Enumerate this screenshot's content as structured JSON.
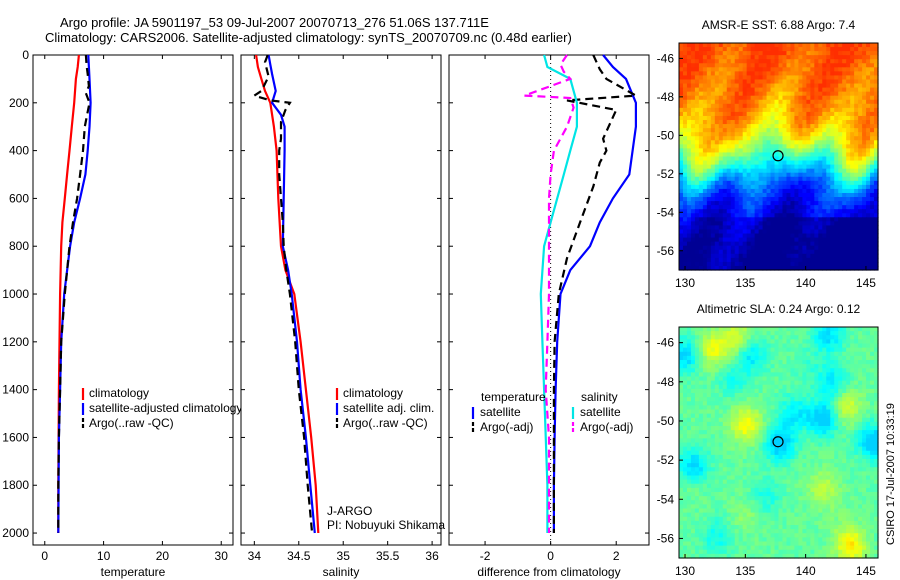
{
  "header": {
    "line1": "Argo profile: JA 5901197_53 09-Jul-2007 20070713_276 51.06S 137.711E",
    "line2": "Climatology: CARS2006. Satellite-adjusted climatology: synTS_20070709.nc (0.48d earlier)"
  },
  "colors": {
    "climatology": "#ff0000",
    "satellite": "#0000ff",
    "argo": "#000000",
    "sal_satellite": "#00e5e5",
    "sal_argo": "#ff00ff"
  },
  "chart_data": [
    {
      "type": "line",
      "id": "temperature",
      "xlabel": "temperature",
      "ylabel": "",
      "xlim": [
        -2,
        32
      ],
      "ylim": [
        0,
        2050
      ],
      "inverted_y": true,
      "xticks": [
        0,
        10,
        20,
        30
      ],
      "yticks": [
        0,
        200,
        400,
        600,
        800,
        1000,
        1200,
        1400,
        1600,
        1800,
        2000
      ],
      "legend": {
        "position": "lower-right",
        "entries": [
          "climatology",
          "satellite-adjusted climatology",
          "Argo(..raw -QC)"
        ]
      },
      "series": [
        {
          "name": "climatology",
          "color": "#ff0000",
          "style": "solid",
          "points": [
            [
              5.8,
              0
            ],
            [
              5.6,
              50
            ],
            [
              5.3,
              100
            ],
            [
              5.0,
              200
            ],
            [
              4.6,
              300
            ],
            [
              4.2,
              400
            ],
            [
              3.8,
              500
            ],
            [
              3.4,
              600
            ],
            [
              3.0,
              700
            ],
            [
              2.8,
              800
            ],
            [
              2.6,
              1000
            ],
            [
              2.5,
              1200
            ],
            [
              2.4,
              1400
            ],
            [
              2.35,
              1600
            ],
            [
              2.3,
              1800
            ],
            [
              2.3,
              2000
            ]
          ]
        },
        {
          "name": "satellite-adjusted climatology",
          "color": "#0000ff",
          "style": "solid",
          "points": [
            [
              7.4,
              0
            ],
            [
              7.5,
              50
            ],
            [
              7.6,
              100
            ],
            [
              7.8,
              200
            ],
            [
              7.6,
              300
            ],
            [
              7.3,
              400
            ],
            [
              6.9,
              500
            ],
            [
              6.0,
              600
            ],
            [
              5.0,
              700
            ],
            [
              4.3,
              800
            ],
            [
              3.3,
              1000
            ],
            [
              2.8,
              1200
            ],
            [
              2.6,
              1400
            ],
            [
              2.4,
              1600
            ],
            [
              2.35,
              1800
            ],
            [
              2.3,
              2000
            ]
          ]
        },
        {
          "name": "Argo(..raw -QC)",
          "color": "#000000",
          "style": "dashed",
          "points": [
            [
              7.0,
              0
            ],
            [
              7.1,
              40
            ],
            [
              7.3,
              80
            ],
            [
              7.5,
              130
            ],
            [
              7.0,
              160
            ],
            [
              7.6,
              200
            ],
            [
              7.2,
              250
            ],
            [
              6.8,
              300
            ],
            [
              6.5,
              400
            ],
            [
              6.0,
              500
            ],
            [
              5.5,
              600
            ],
            [
              4.8,
              700
            ],
            [
              4.2,
              800
            ],
            [
              3.4,
              1000
            ],
            [
              2.8,
              1200
            ],
            [
              2.6,
              1400
            ],
            [
              2.4,
              1600
            ],
            [
              2.3,
              1800
            ],
            [
              2.3,
              2000
            ]
          ]
        }
      ]
    },
    {
      "type": "line",
      "id": "salinity",
      "xlabel": "salinity",
      "ylabel": "",
      "xlim": [
        33.85,
        36.1
      ],
      "ylim": [
        0,
        2050
      ],
      "inverted_y": true,
      "xticks": [
        34,
        34.5,
        35,
        35.5,
        36
      ],
      "yticks": [
        0,
        200,
        400,
        600,
        800,
        1000,
        1200,
        1400,
        1600,
        1800,
        2000
      ],
      "legend": {
        "position": "lower-right",
        "entries": [
          "climatology",
          "satellite adj. clim.",
          "Argo(..raw -QC)"
        ]
      },
      "annotation": {
        "line1": "J-ARGO",
        "line2": "PI: Nobuyuki Shikama"
      },
      "series": [
        {
          "name": "climatology",
          "color": "#ff0000",
          "style": "solid",
          "points": [
            [
              34.02,
              0
            ],
            [
              34.04,
              50
            ],
            [
              34.08,
              100
            ],
            [
              34.12,
              150
            ],
            [
              34.18,
              200
            ],
            [
              34.22,
              300
            ],
            [
              34.25,
              400
            ],
            [
              34.27,
              600
            ],
            [
              34.3,
              800
            ],
            [
              34.35,
              900
            ],
            [
              34.45,
              1000
            ],
            [
              34.52,
              1200
            ],
            [
              34.58,
              1400
            ],
            [
              34.64,
              1600
            ],
            [
              34.69,
              1800
            ],
            [
              34.72,
              2000
            ]
          ]
        },
        {
          "name": "satellite adj. clim.",
          "color": "#0000ff",
          "style": "solid",
          "points": [
            [
              34.16,
              0
            ],
            [
              34.18,
              40
            ],
            [
              34.2,
              80
            ],
            [
              34.24,
              150
            ],
            [
              34.2,
              200
            ],
            [
              34.3,
              250
            ],
            [
              34.34,
              300
            ],
            [
              34.34,
              400
            ],
            [
              34.33,
              600
            ],
            [
              34.32,
              800
            ],
            [
              34.38,
              900
            ],
            [
              34.42,
              1000
            ],
            [
              34.48,
              1200
            ],
            [
              34.52,
              1400
            ],
            [
              34.58,
              1600
            ],
            [
              34.63,
              1800
            ],
            [
              34.68,
              2000
            ]
          ]
        },
        {
          "name": "Argo(..raw -QC)",
          "color": "#000000",
          "style": "dashed",
          "points": [
            [
              34.15,
              0
            ],
            [
              34.12,
              30
            ],
            [
              34.14,
              60
            ],
            [
              34.16,
              90
            ],
            [
              34.12,
              120
            ],
            [
              34.08,
              150
            ],
            [
              34.0,
              170
            ],
            [
              34.18,
              190
            ],
            [
              34.4,
              200
            ],
            [
              34.35,
              230
            ],
            [
              34.3,
              280
            ],
            [
              34.3,
              350
            ],
            [
              34.28,
              400
            ],
            [
              34.28,
              500
            ],
            [
              34.3,
              600
            ],
            [
              34.32,
              700
            ],
            [
              34.33,
              800
            ],
            [
              34.36,
              900
            ],
            [
              34.4,
              1000
            ],
            [
              34.46,
              1200
            ],
            [
              34.5,
              1400
            ],
            [
              34.56,
              1600
            ],
            [
              34.6,
              1800
            ],
            [
              34.65,
              2000
            ]
          ]
        }
      ]
    },
    {
      "type": "line",
      "id": "difference",
      "xlabel": "difference from climatology",
      "ylabel": "",
      "xlim": [
        -3.1,
        3.0
      ],
      "ylim": [
        0,
        2050
      ],
      "inverted_y": true,
      "xticks": [
        -2,
        0,
        2
      ],
      "yticks": [
        0,
        200,
        400,
        600,
        800,
        1000,
        1200,
        1400,
        1600,
        1800,
        2000
      ],
      "legend": {
        "position": "lower",
        "headers": [
          "temperature",
          "salinity"
        ],
        "entries": [
          "satellite",
          "Argo(-adj)",
          "satellite",
          "Argo(-adj)"
        ]
      },
      "series": [
        {
          "name": "temperature satellite",
          "color": "#0000ff",
          "style": "solid",
          "points": [
            [
              1.6,
              0
            ],
            [
              1.9,
              50
            ],
            [
              2.3,
              100
            ],
            [
              2.6,
              200
            ],
            [
              2.6,
              300
            ],
            [
              2.5,
              400
            ],
            [
              2.4,
              500
            ],
            [
              1.9,
              600
            ],
            [
              1.5,
              700
            ],
            [
              1.2,
              800
            ],
            [
              0.6,
              900
            ],
            [
              0.3,
              1000
            ],
            [
              0.2,
              1200
            ],
            [
              0.15,
              1400
            ],
            [
              0.12,
              1600
            ],
            [
              0.1,
              1800
            ],
            [
              0.1,
              2000
            ]
          ]
        },
        {
          "name": "temperature Argo(-adj)",
          "color": "#000000",
          "style": "dashed",
          "points": [
            [
              1.3,
              0
            ],
            [
              1.5,
              60
            ],
            [
              1.7,
              100
            ],
            [
              2.6,
              170
            ],
            [
              0.5,
              190
            ],
            [
              2.0,
              230
            ],
            [
              1.6,
              350
            ],
            [
              1.7,
              400
            ],
            [
              1.5,
              450
            ],
            [
              1.3,
              550
            ],
            [
              0.9,
              700
            ],
            [
              0.5,
              850
            ],
            [
              0.25,
              1000
            ],
            [
              0.12,
              1200
            ],
            [
              0.1,
              1400
            ],
            [
              0.1,
              1600
            ],
            [
              0.1,
              1800
            ],
            [
              0.1,
              2000
            ]
          ]
        },
        {
          "name": "salinity satellite",
          "color": "#00e5e5",
          "style": "solid",
          "points": [
            [
              -0.2,
              0
            ],
            [
              -0.1,
              50
            ],
            [
              0.6,
              100
            ],
            [
              0.8,
              200
            ],
            [
              0.8,
              300
            ],
            [
              0.6,
              400
            ],
            [
              0.4,
              500
            ],
            [
              0.2,
              600
            ],
            [
              0.0,
              700
            ],
            [
              -0.2,
              800
            ],
            [
              -0.3,
              1000
            ],
            [
              -0.25,
              1200
            ],
            [
              -0.2,
              1400
            ],
            [
              -0.1,
              1800
            ],
            [
              -0.1,
              2000
            ]
          ]
        },
        {
          "name": "salinity Argo(-adj)",
          "color": "#ff00ff",
          "style": "dashed",
          "points": [
            [
              0.5,
              0
            ],
            [
              0.3,
              40
            ],
            [
              0.4,
              70
            ],
            [
              0.6,
              100
            ],
            [
              -0.8,
              170
            ],
            [
              0.6,
              180
            ],
            [
              0.7,
              220
            ],
            [
              0.5,
              300
            ],
            [
              0.1,
              400
            ],
            [
              0.0,
              500
            ],
            [
              -0.05,
              600
            ],
            [
              -0.05,
              800
            ],
            [
              -0.05,
              1000
            ],
            [
              -0.1,
              1200
            ],
            [
              -0.15,
              1400
            ],
            [
              -0.05,
              1600
            ],
            [
              -0.05,
              1800
            ],
            [
              -0.05,
              2000
            ]
          ]
        }
      ]
    },
    {
      "type": "heatmap",
      "id": "sst-map",
      "title": "AMSR-E SST: 6.88 Argo: 7.4",
      "xlim": [
        129.5,
        146
      ],
      "ylim": [
        -57,
        -45.2
      ],
      "xticks": [
        130,
        135,
        140,
        145
      ],
      "yticks": [
        -46,
        -48,
        -50,
        -52,
        -54,
        -56
      ],
      "marker": {
        "lon": 137.711,
        "lat": -51.06
      }
    },
    {
      "type": "heatmap",
      "id": "sla-map",
      "title": "Altimetric SLA: 0.24 Argo: 0.12",
      "xlim": [
        129.5,
        146
      ],
      "ylim": [
        -57,
        -45.2
      ],
      "xticks": [
        130,
        135,
        140,
        145
      ],
      "yticks": [
        -46,
        -48,
        -50,
        -52,
        -54,
        -56
      ],
      "marker": {
        "lon": 137.711,
        "lat": -51.06
      }
    }
  ],
  "side_label": "CSIRO 17-Jul-2007 10:33:19"
}
